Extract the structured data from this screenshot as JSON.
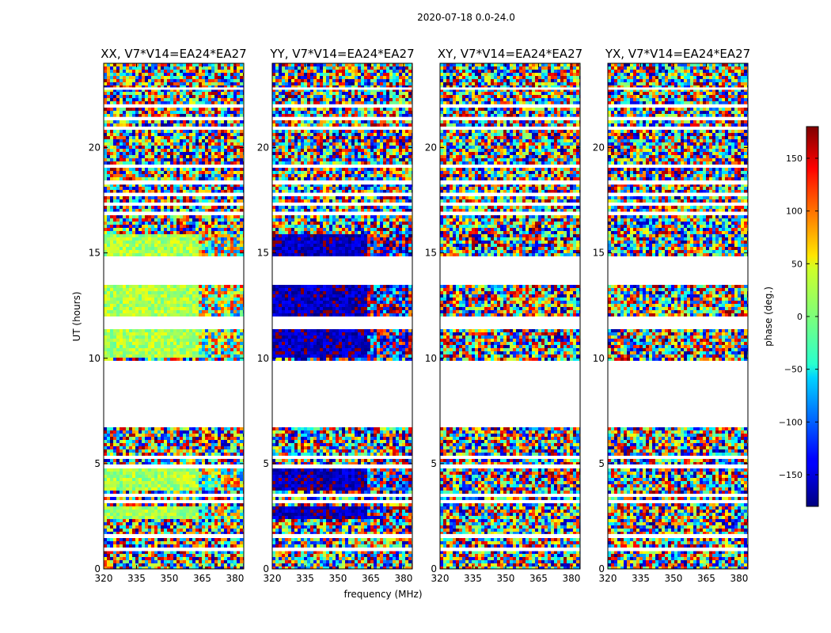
{
  "chart_data": {
    "type": "heatmap",
    "title": "2020-07-18 0.0-24.0",
    "xlabel": "frequency (MHz)",
    "ylabel": "UT (hours)",
    "xlim": [
      320,
      384
    ],
    "ylim": [
      0,
      24
    ],
    "x_ticks": [
      "320",
      "335",
      "350",
      "365",
      "380"
    ],
    "y_ticks": [
      "0",
      "5",
      "10",
      "15",
      "20"
    ],
    "panels": [
      {
        "title": "XX, V7*V14=EA24*EA27",
        "coherent_phase_deg": 15,
        "coherent_until_freq_MHz": 362,
        "coherent_hours": [
          [
            2.4,
            2.9
          ],
          [
            3.7,
            4.7
          ],
          [
            10.0,
            11.4
          ],
          [
            12.0,
            13.5
          ],
          [
            14.9,
            15.9
          ]
        ]
      },
      {
        "title": "YY, V7*V14=EA24*EA27",
        "coherent_phase_deg": -160,
        "coherent_until_freq_MHz": 362,
        "coherent_hours": [
          [
            2.4,
            2.9
          ],
          [
            3.7,
            4.7
          ],
          [
            10.0,
            11.4
          ],
          [
            12.0,
            13.5
          ],
          [
            14.9,
            15.9
          ]
        ]
      },
      {
        "title": "XY, V7*V14=EA24*EA27",
        "coherent_phase_deg": null,
        "coherent_until_freq_MHz": null,
        "coherent_hours": []
      },
      {
        "title": "YX, V7*V14=EA24*EA27",
        "coherent_phase_deg": null,
        "coherent_until_freq_MHz": null,
        "coherent_hours": []
      }
    ],
    "data_gaps_hours": [
      [
        6.7,
        9.9
      ],
      [
        11.4,
        12.0
      ],
      [
        13.5,
        14.9
      ]
    ],
    "flagged_rows_hours": [
      0.9,
      1.6,
      3.2,
      3.5,
      4.9,
      5.3,
      16.9,
      17.3,
      17.8,
      18.3,
      19.1,
      20.9,
      21.4,
      22.0,
      22.8
    ],
    "colorbar": {
      "label": "phase (deg.)",
      "vmin": -180,
      "vmax": 180,
      "ticks": [
        "−150",
        "−100",
        "−50",
        "0",
        "50",
        "100",
        "150"
      ],
      "colormap": "jet"
    }
  }
}
